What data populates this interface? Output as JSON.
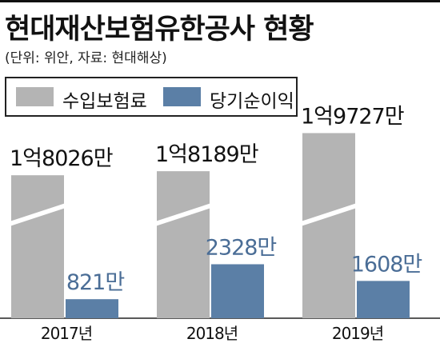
{
  "header": {
    "title": "현대재산보험유한공사 현황",
    "subtitle": "(단위: 위안, 자료: 현대해상)"
  },
  "chart_data": {
    "type": "bar",
    "title": "현대재산보험유한공사 현황",
    "subtitle": "(단위: 위안, 자료: 현대해상)",
    "xlabel": "",
    "ylabel": "",
    "categories": [
      "2017년",
      "2018년",
      "2019년"
    ],
    "series": [
      {
        "name": "수입보험료",
        "values": [
          180260000,
          181890000,
          197270000
        ],
        "labels": [
          "1억8026만",
          "1억8189만",
          "1억9727만"
        ],
        "color": "#b4b4b4"
      },
      {
        "name": "당기순이익",
        "values": [
          8210000,
          23280000,
          16080000
        ],
        "labels": [
          "821만",
          "2328만",
          "1608만"
        ],
        "color": "#5b7fa6"
      }
    ],
    "axis_break": true,
    "grid": false,
    "legend": "top-left",
    "label_colors": {
      "premium": "#111111",
      "profit": "#4a6d96"
    }
  }
}
